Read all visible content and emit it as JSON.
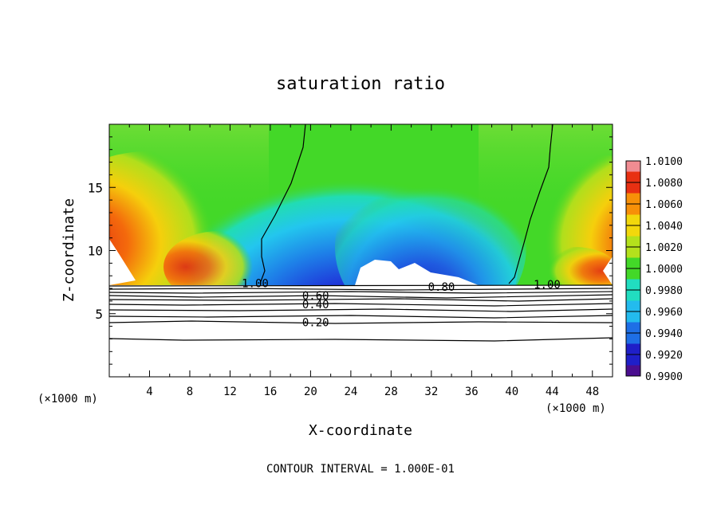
{
  "chart_data": {
    "type": "heatmap",
    "title": "saturation ratio",
    "xlabel": "X-coordinate",
    "ylabel": "Z-coordinate",
    "x_unit_left": "(×1000 m)",
    "x_unit_right": "(×1000 m)",
    "xlim": [
      0,
      50
    ],
    "ylim": [
      0,
      20
    ],
    "x_ticks": [
      4,
      8,
      12,
      16,
      20,
      24,
      28,
      32,
      36,
      40,
      44,
      48
    ],
    "y_ticks": [
      5,
      10,
      15
    ],
    "colorbar": {
      "levels": [
        "0.9900",
        "0.9920",
        "0.9940",
        "0.9960",
        "0.9980",
        "1.0000",
        "1.0020",
        "1.0040",
        "1.0060",
        "1.0080",
        "1.0100"
      ],
      "colors": [
        "#4a0e8f",
        "#1f1fc8",
        "#1e6fe6",
        "#23bbee",
        "#21ddc0",
        "#43d828",
        "#b4e11c",
        "#f2d80c",
        "#f79008",
        "#e83012",
        "#f08c92"
      ]
    },
    "contour_levels": [
      0.1,
      0.2,
      0.3,
      0.4,
      0.5,
      0.6,
      0.7,
      0.8,
      0.9,
      1.0
    ],
    "contour_labels": [
      {
        "text": "1.00",
        "x": 14.5,
        "z": 7.3
      },
      {
        "text": "0.60",
        "x": 20.5,
        "z": 6.3
      },
      {
        "text": "0.40",
        "x": 20.5,
        "z": 5.6
      },
      {
        "text": "0.20",
        "x": 20.5,
        "z": 4.2
      },
      {
        "text": "0.80",
        "x": 33.0,
        "z": 7.0
      },
      {
        "text": "1.00",
        "x": 43.5,
        "z": 7.2
      }
    ],
    "annotation": "CONTOUR INTERVAL = 1.000E-01"
  }
}
